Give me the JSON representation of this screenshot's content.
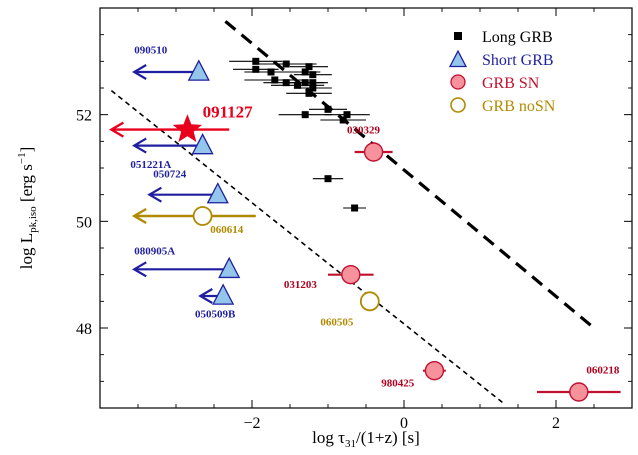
{
  "chart_data": {
    "type": "scatter",
    "xlabel_main": "log τ",
    "xlabel_sub": "31",
    "xlabel_rest": "/(1+z)  [s]",
    "ylabel_main": "log L",
    "ylabel_sub": "pk,iso",
    "ylabel_rest": " [erg s",
    "ylabel_sup": "−1",
    "ylabel_end": "]",
    "xlim": [
      -4.0,
      3.0
    ],
    "ylim": [
      46.5,
      54.0
    ],
    "xticks": [
      {
        "v": -2,
        "label": "−2"
      },
      {
        "v": 0,
        "label": "0"
      },
      {
        "v": 2,
        "label": "2"
      }
    ],
    "yticks": [
      {
        "v": 48,
        "label": "48"
      },
      {
        "v": 50,
        "label": "50"
      },
      {
        "v": 52,
        "label": "52"
      }
    ],
    "legend": [
      {
        "name": "Long GRB",
        "marker": "square",
        "color": "#000000"
      },
      {
        "name": "Short GRB",
        "marker": "triangle",
        "color": "#1f1f9f"
      },
      {
        "name": "GRB SN",
        "marker": "circle-filled",
        "color": "#c0102f"
      },
      {
        "name": "GRB noSN",
        "marker": "circle-open",
        "color": "#b08a00"
      }
    ],
    "lines": [
      {
        "style": "thick-dash",
        "x": [
          -2.35,
          2.5
        ],
        "y": [
          53.75,
          48.0
        ]
      },
      {
        "style": "thin-dash",
        "x": [
          -3.85,
          1.3
        ],
        "y": [
          52.45,
          46.6
        ]
      }
    ],
    "long_grb": [
      {
        "x": -1.95,
        "y": 53.0,
        "xerr": 0.35
      },
      {
        "x": -1.95,
        "y": 52.85,
        "xerr": 0.3
      },
      {
        "x": -1.55,
        "y": 52.95,
        "xerr": 0.4
      },
      {
        "x": -1.25,
        "y": 52.9,
        "xerr": 0.25
      },
      {
        "x": -1.75,
        "y": 52.8,
        "xerr": 0.35
      },
      {
        "x": -1.3,
        "y": 52.8,
        "xerr": 0.2
      },
      {
        "x": -1.2,
        "y": 52.75,
        "xerr": 0.25
      },
      {
        "x": -1.7,
        "y": 52.65,
        "xerr": 0.4
      },
      {
        "x": -1.55,
        "y": 52.6,
        "xerr": 0.3
      },
      {
        "x": -1.3,
        "y": 52.6,
        "xerr": 0.25
      },
      {
        "x": -1.2,
        "y": 52.6,
        "xerr": 0.2
      },
      {
        "x": -1.4,
        "y": 52.55,
        "xerr": 0.35
      },
      {
        "x": -1.2,
        "y": 52.5,
        "xerr": 0.25
      },
      {
        "x": -1.25,
        "y": 52.4,
        "xerr": 0.3
      },
      {
        "x": -1.0,
        "y": 52.1,
        "xerr": 0.25
      },
      {
        "x": -1.3,
        "y": 52.0,
        "xerr": 0.35
      },
      {
        "x": -0.75,
        "y": 52.0,
        "xerr": 0.3
      },
      {
        "x": -0.8,
        "y": 51.9,
        "xerr": 0.3
      },
      {
        "x": -1.0,
        "y": 50.8,
        "xerr": 0.2
      },
      {
        "x": -0.65,
        "y": 50.25,
        "xerr": 0.15
      }
    ],
    "short_grb": [
      {
        "label": "090510",
        "x": -2.7,
        "y": 52.8,
        "arrow_to": -3.55,
        "label_x": -3.55,
        "label_y": 53.15
      },
      {
        "label": "051221A",
        "x": -2.65,
        "y": 51.42,
        "arrow_to": -3.55,
        "label_x": -3.6,
        "label_y": 51.0
      },
      {
        "label": "050724",
        "x": -2.45,
        "y": 50.5,
        "arrow_to": -3.35,
        "label_x": -3.3,
        "label_y": 50.82
      },
      {
        "label": "080905A",
        "x": -2.3,
        "y": 49.1,
        "arrow_to": -3.55,
        "label_x": -3.55,
        "label_y": 49.38
      },
      {
        "label": "050509B",
        "x": -2.38,
        "y": 48.6,
        "arrow_to": -2.68,
        "label_x": -2.75,
        "label_y": 48.2
      }
    ],
    "grb_sn": [
      {
        "label": "030329",
        "x": -0.4,
        "y": 51.3,
        "xerr": 0.25,
        "label_x": -0.75,
        "label_y": 51.65
      },
      {
        "label": "031203",
        "x": -0.7,
        "y": 49.0,
        "xerr": 0.3,
        "label_x": -1.58,
        "label_y": 48.75
      },
      {
        "label": "980425",
        "x": 0.4,
        "y": 47.2,
        "xerr": 0.15,
        "label_x": -0.3,
        "label_y": 46.9
      },
      {
        "label": "060218",
        "x": 2.3,
        "y": 46.8,
        "xerr": 0.55,
        "label_x": 2.4,
        "label_y": 47.15
      }
    ],
    "grb_nosn": [
      {
        "label": "060614",
        "x": -2.65,
        "y": 50.1,
        "arrow_to": -3.55,
        "xerr_right": 0.7,
        "label_x": -2.55,
        "label_y": 49.78
      },
      {
        "label": "060505",
        "x": -0.45,
        "y": 48.5,
        "label_x": -1.1,
        "label_y": 48.05
      }
    ],
    "highlight": {
      "label": "091127",
      "x": -2.85,
      "y": 51.72,
      "arrow_to": -3.85,
      "xerr_right": 0.55,
      "label_x": -2.65,
      "label_y": 51.95
    }
  }
}
